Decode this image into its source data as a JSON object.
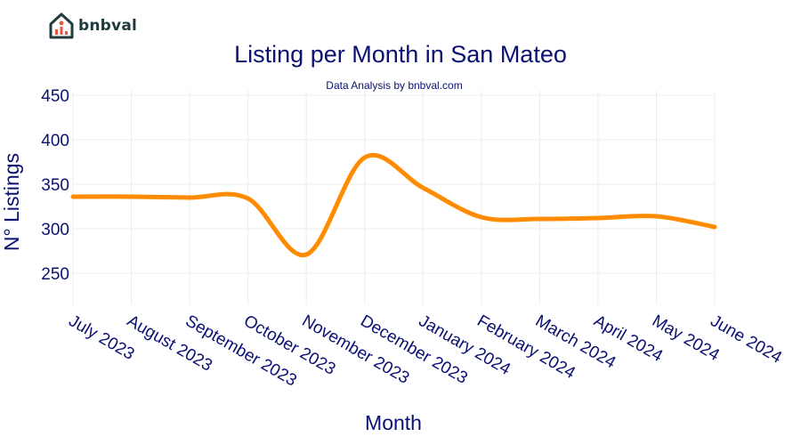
{
  "brand": {
    "name": "bnbval",
    "icon": "house-chart-icon"
  },
  "colors": {
    "title": "#0a1172",
    "line": "#ff8c00",
    "grid": "#ececec",
    "brand": "#1f3b3d",
    "brand_accent": "#e8553d"
  },
  "chart_data": {
    "type": "line",
    "title": "Listing per Month in San Mateo",
    "subtitle": "Data Analysis by bnbval.com",
    "xlabel": "Month",
    "ylabel": "N° Listings",
    "categories": [
      "July 2023",
      "August 2023",
      "September 2023",
      "October 2023",
      "November 2023",
      "December 2023",
      "January 2024",
      "February 2024",
      "March 2024",
      "April 2024",
      "May 2024",
      "June 2024"
    ],
    "series": [
      {
        "values": [
          336,
          336,
          335,
          334,
          271,
          380,
          346,
          313,
          311,
          312,
          314,
          302
        ]
      }
    ],
    "ylim": [
      215,
      455
    ],
    "yticks": [
      250,
      300,
      350,
      400,
      450
    ],
    "grid": true,
    "line_shape": "spline"
  }
}
